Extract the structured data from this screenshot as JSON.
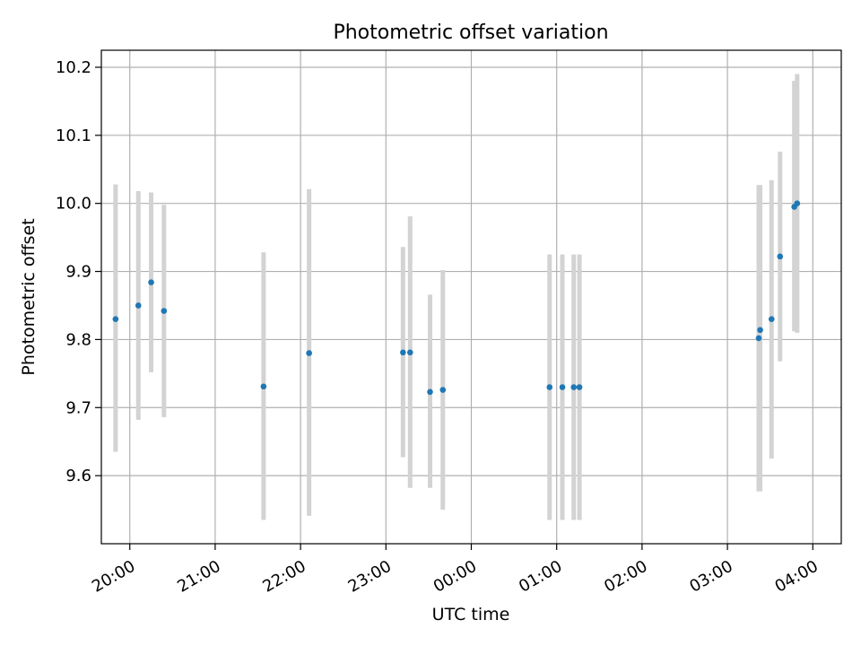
{
  "chart_data": {
    "type": "scatter",
    "title": "Photometric offset variation",
    "xlabel": "UTC time",
    "ylabel": "Photometric offset",
    "grid": true,
    "x_unit": "UTC time (HH:MM)",
    "xlim": [
      "19:40",
      "04:20"
    ],
    "ylim": [
      9.5,
      10.225
    ],
    "x_ticks": [
      "20:00",
      "21:00",
      "22:00",
      "23:00",
      "00:00",
      "01:00",
      "02:00",
      "03:00",
      "04:00"
    ],
    "y_ticks": [
      9.6,
      9.7,
      9.8,
      9.9,
      10.0,
      10.1,
      10.2
    ],
    "colors": {
      "points": "#1f77b4",
      "error_bars": "#d3d3d3",
      "grid": "#b0b0b0"
    },
    "points": [
      {
        "time": "19:50",
        "y": 9.83,
        "yerr_low": 9.635,
        "yerr_high": 10.028
      },
      {
        "time": "20:06",
        "y": 9.85,
        "yerr_low": 9.682,
        "yerr_high": 10.018
      },
      {
        "time": "20:15",
        "y": 9.884,
        "yerr_low": 9.752,
        "yerr_high": 10.016
      },
      {
        "time": "20:24",
        "y": 9.842,
        "yerr_low": 9.686,
        "yerr_high": 9.998
      },
      {
        "time": "21:34",
        "y": 9.731,
        "yerr_low": 9.535,
        "yerr_high": 9.928
      },
      {
        "time": "22:06",
        "y": 9.78,
        "yerr_low": 9.541,
        "yerr_high": 10.021
      },
      {
        "time": "23:12",
        "y": 9.781,
        "yerr_low": 9.627,
        "yerr_high": 9.936
      },
      {
        "time": "23:17",
        "y": 9.781,
        "yerr_low": 9.582,
        "yerr_high": 9.981
      },
      {
        "time": "23:31",
        "y": 9.723,
        "yerr_low": 9.582,
        "yerr_high": 9.866
      },
      {
        "time": "23:40",
        "y": 9.726,
        "yerr_low": 9.55,
        "yerr_high": 9.902
      },
      {
        "time": "00:55",
        "y": 9.73,
        "yerr_low": 9.535,
        "yerr_high": 9.925
      },
      {
        "time": "01:04",
        "y": 9.73,
        "yerr_low": 9.535,
        "yerr_high": 9.925
      },
      {
        "time": "01:12",
        "y": 9.73,
        "yerr_low": 9.535,
        "yerr_high": 9.925
      },
      {
        "time": "01:16",
        "y": 9.73,
        "yerr_low": 9.535,
        "yerr_high": 9.925
      },
      {
        "time": "03:22",
        "y": 9.802,
        "yerr_low": 9.577,
        "yerr_high": 10.027
      },
      {
        "time": "03:23",
        "y": 9.814,
        "yerr_low": 9.577,
        "yerr_high": 10.027
      },
      {
        "time": "03:31",
        "y": 9.83,
        "yerr_low": 9.625,
        "yerr_high": 10.034
      },
      {
        "time": "03:37",
        "y": 9.922,
        "yerr_low": 9.768,
        "yerr_high": 10.076
      },
      {
        "time": "03:47",
        "y": 9.995,
        "yerr_low": 9.812,
        "yerr_high": 10.18
      },
      {
        "time": "03:49",
        "y": 10.0,
        "yerr_low": 9.81,
        "yerr_high": 10.19
      }
    ]
  }
}
